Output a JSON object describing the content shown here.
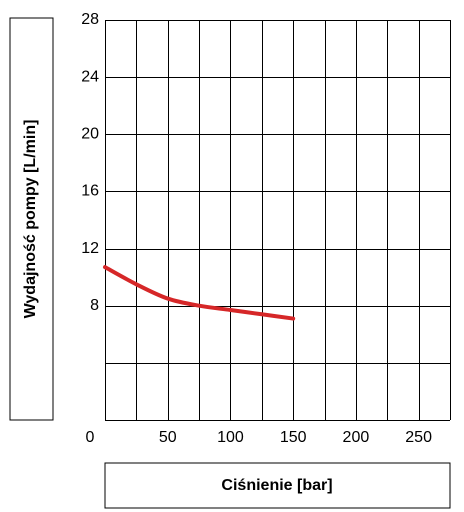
{
  "chart_data": {
    "type": "line",
    "xlabel": "Ciśnienie [bar]",
    "ylabel": "Wydajność pompy [L/min]",
    "xlim": [
      0,
      275
    ],
    "ylim": [
      0,
      28
    ],
    "x_ticks": [
      0,
      50,
      100,
      150,
      200,
      250
    ],
    "y_ticks": [
      8,
      12,
      16,
      20,
      24,
      28
    ],
    "grid": true,
    "colors": {
      "series": "#d62728",
      "grid": "#000000"
    },
    "series": [
      {
        "x": [
          0,
          25,
          50,
          75,
          100,
          125,
          150
        ],
        "y": [
          10.7,
          9.5,
          8.5,
          8.0,
          7.7,
          7.4,
          7.1
        ]
      }
    ]
  }
}
